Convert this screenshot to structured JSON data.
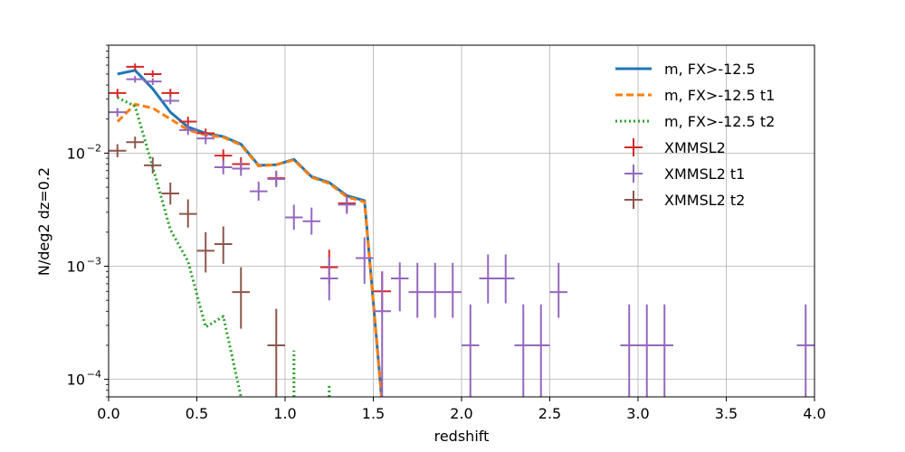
{
  "chart_data": {
    "type": "line",
    "title": "",
    "xlabel": "redshift",
    "ylabel": "N/deg2  dz=0.2",
    "xlim": [
      0.0,
      4.0
    ],
    "ylim": [
      7e-05,
      0.09
    ],
    "yscale": "log",
    "grid": true,
    "legend_position": "top-right",
    "x_ticks": [
      {
        "value": 0.0,
        "label": "0.0"
      },
      {
        "value": 0.5,
        "label": "0.5"
      },
      {
        "value": 1.0,
        "label": "1.0"
      },
      {
        "value": 1.5,
        "label": "1.5"
      },
      {
        "value": 2.0,
        "label": "2.0"
      },
      {
        "value": 2.5,
        "label": "2.5"
      },
      {
        "value": 3.0,
        "label": "3.0"
      },
      {
        "value": 3.5,
        "label": "3.5"
      },
      {
        "value": 4.0,
        "label": "4.0"
      }
    ],
    "y_ticks": [
      {
        "value": 0.0001,
        "base": "10",
        "exp": "−4"
      },
      {
        "value": 0.001,
        "base": "10",
        "exp": "−3"
      },
      {
        "value": 0.01,
        "base": "10",
        "exp": "−2"
      }
    ],
    "series": [
      {
        "name": "m, FX>-12.5",
        "kind": "line",
        "color": "#1f77b4",
        "dash": "solid",
        "x": [
          0.05,
          0.15,
          0.25,
          0.35,
          0.45,
          0.55,
          0.65,
          0.75,
          0.85,
          0.95,
          1.05,
          1.15,
          1.25,
          1.35,
          1.45,
          1.55
        ],
        "y": [
          0.05,
          0.054,
          0.037,
          0.023,
          0.017,
          0.015,
          0.014,
          0.012,
          0.0078,
          0.0079,
          0.0088,
          0.0062,
          0.0055,
          0.0042,
          0.0038,
          6e-05
        ]
      },
      {
        "name": "m, FX>-12.5 t1",
        "kind": "line",
        "color": "#ff7f0e",
        "dash": "dashed",
        "x": [
          0.05,
          0.15,
          0.25,
          0.35,
          0.45,
          0.55,
          0.65,
          0.75,
          0.85,
          0.95,
          1.05,
          1.15,
          1.25,
          1.35,
          1.45,
          1.55
        ],
        "y": [
          0.019,
          0.027,
          0.025,
          0.02,
          0.016,
          0.0145,
          0.0138,
          0.0118,
          0.0077,
          0.0079,
          0.0087,
          0.0061,
          0.0054,
          0.0041,
          0.0037,
          6e-05
        ]
      },
      {
        "name": "m, FX>-12.5 t2",
        "kind": "line",
        "color": "#2ca02c",
        "dash": "dotted",
        "segments": [
          {
            "x": [
              0.05,
              0.15,
              0.25,
              0.35,
              0.45,
              0.55,
              0.65,
              0.75
            ],
            "y": [
              0.031,
              0.026,
              0.0075,
              0.0021,
              0.0011,
              0.00029,
              0.00036,
              7e-05
            ]
          },
          {
            "x": [
              1.05,
              1.05
            ],
            "y": [
              7e-05,
              0.00018
            ]
          },
          {
            "x": [
              1.25,
              1.25
            ],
            "y": [
              7e-05,
              9e-05
            ]
          }
        ]
      },
      {
        "name": "XMMSL2",
        "kind": "errorbar",
        "color": "#d62728",
        "points": [
          {
            "x": 0.05,
            "y": 0.034,
            "ylo": 0.031,
            "yhi": 0.037
          },
          {
            "x": 0.15,
            "y": 0.058,
            "ylo": 0.054,
            "yhi": 0.062
          },
          {
            "x": 0.25,
            "y": 0.05,
            "ylo": 0.047,
            "yhi": 0.054
          },
          {
            "x": 0.35,
            "y": 0.034,
            "ylo": 0.031,
            "yhi": 0.037
          },
          {
            "x": 0.45,
            "y": 0.019,
            "ylo": 0.017,
            "yhi": 0.021
          },
          {
            "x": 0.55,
            "y": 0.015,
            "ylo": 0.0135,
            "yhi": 0.0165
          },
          {
            "x": 0.65,
            "y": 0.0095,
            "ylo": 0.0083,
            "yhi": 0.0108
          },
          {
            "x": 0.75,
            "y": 0.008,
            "ylo": 0.007,
            "yhi": 0.0092
          },
          {
            "x": 0.95,
            "y": 0.006,
            "ylo": 0.0052,
            "yhi": 0.0069
          },
          {
            "x": 1.35,
            "y": 0.0036,
            "ylo": 0.003,
            "yhi": 0.0043
          },
          {
            "x": 1.25,
            "y": 0.00098,
            "ylo": 0.0007,
            "yhi": 0.0014
          },
          {
            "x": 1.55,
            "y": 0.0006,
            "ylo": 0.0004,
            "yhi": 0.0009
          }
        ]
      },
      {
        "name": "XMMSL2 t1",
        "kind": "errorbar",
        "color": "#9467bd",
        "points": [
          {
            "x": 0.05,
            "y": 0.023,
            "ylo": 0.021,
            "yhi": 0.025
          },
          {
            "x": 0.15,
            "y": 0.045,
            "ylo": 0.042,
            "yhi": 0.048
          },
          {
            "x": 0.25,
            "y": 0.043,
            "ylo": 0.04,
            "yhi": 0.046
          },
          {
            "x": 0.35,
            "y": 0.029,
            "ylo": 0.027,
            "yhi": 0.032
          },
          {
            "x": 0.45,
            "y": 0.016,
            "ylo": 0.0145,
            "yhi": 0.018
          },
          {
            "x": 0.55,
            "y": 0.0135,
            "ylo": 0.012,
            "yhi": 0.0152
          },
          {
            "x": 0.65,
            "y": 0.0075,
            "ylo": 0.0065,
            "yhi": 0.0087
          },
          {
            "x": 0.75,
            "y": 0.0073,
            "ylo": 0.0063,
            "yhi": 0.0085
          },
          {
            "x": 0.85,
            "y": 0.0046,
            "ylo": 0.0038,
            "yhi": 0.0056
          },
          {
            "x": 0.95,
            "y": 0.0059,
            "ylo": 0.005,
            "yhi": 0.007
          },
          {
            "x": 1.05,
            "y": 0.0027,
            "ylo": 0.0021,
            "yhi": 0.0035
          },
          {
            "x": 1.15,
            "y": 0.0025,
            "ylo": 0.0019,
            "yhi": 0.0033
          },
          {
            "x": 1.25,
            "y": 0.00078,
            "ylo": 0.0005,
            "yhi": 0.0012
          },
          {
            "x": 1.35,
            "y": 0.0035,
            "ylo": 0.0029,
            "yhi": 0.0042
          },
          {
            "x": 1.45,
            "y": 0.00118,
            "ylo": 0.0007,
            "yhi": 0.0018
          },
          {
            "x": 1.55,
            "y": 0.0004,
            "ylo": 7e-05,
            "yhi": 0.0009
          },
          {
            "x": 1.65,
            "y": 0.00078,
            "ylo": 0.0004,
            "yhi": 0.00108
          },
          {
            "x": 1.75,
            "y": 0.00059,
            "ylo": 0.00035,
            "yhi": 0.00107
          },
          {
            "x": 1.85,
            "y": 0.00059,
            "ylo": 0.00035,
            "yhi": 0.00107
          },
          {
            "x": 1.95,
            "y": 0.00059,
            "ylo": 0.00035,
            "yhi": 0.00107
          },
          {
            "x": 2.05,
            "y": 0.0002,
            "ylo": 7e-05,
            "yhi": 0.00046
          },
          {
            "x": 2.15,
            "y": 0.00078,
            "ylo": 0.00047,
            "yhi": 0.00127
          },
          {
            "x": 2.25,
            "y": 0.00078,
            "ylo": 0.00047,
            "yhi": 0.00127
          },
          {
            "x": 2.35,
            "y": 0.0002,
            "ylo": 7e-05,
            "yhi": 0.00046
          },
          {
            "x": 2.45,
            "y": 0.0002,
            "ylo": 7e-05,
            "yhi": 0.00046
          },
          {
            "x": 2.55,
            "y": 0.00059,
            "ylo": 0.00035,
            "yhi": 0.00107
          },
          {
            "x": 2.95,
            "y": 0.0002,
            "ylo": 7e-05,
            "yhi": 0.00046
          },
          {
            "x": 3.05,
            "y": 0.0002,
            "ylo": 7e-05,
            "yhi": 0.00046
          },
          {
            "x": 3.15,
            "y": 0.0002,
            "ylo": 7e-05,
            "yhi": 0.00046
          },
          {
            "x": 3.95,
            "y": 0.0002,
            "ylo": 7e-05,
            "yhi": 0.00046
          }
        ]
      },
      {
        "name": "XMMSL2 t2",
        "kind": "errorbar",
        "color": "#8c564b",
        "points": [
          {
            "x": 0.05,
            "y": 0.0105,
            "ylo": 0.0092,
            "yhi": 0.012
          },
          {
            "x": 0.15,
            "y": 0.0125,
            "ylo": 0.011,
            "yhi": 0.014
          },
          {
            "x": 0.25,
            "y": 0.0078,
            "ylo": 0.0066,
            "yhi": 0.0092
          },
          {
            "x": 0.35,
            "y": 0.0044,
            "ylo": 0.0035,
            "yhi": 0.0055
          },
          {
            "x": 0.45,
            "y": 0.0029,
            "ylo": 0.0022,
            "yhi": 0.0039
          },
          {
            "x": 0.55,
            "y": 0.00137,
            "ylo": 0.00088,
            "yhi": 0.002
          },
          {
            "x": 0.65,
            "y": 0.00157,
            "ylo": 0.00105,
            "yhi": 0.00225
          },
          {
            "x": 0.75,
            "y": 0.00059,
            "ylo": 0.00028,
            "yhi": 0.00098
          },
          {
            "x": 0.95,
            "y": 0.0002,
            "ylo": 7e-05,
            "yhi": 0.00042
          }
        ]
      }
    ]
  }
}
